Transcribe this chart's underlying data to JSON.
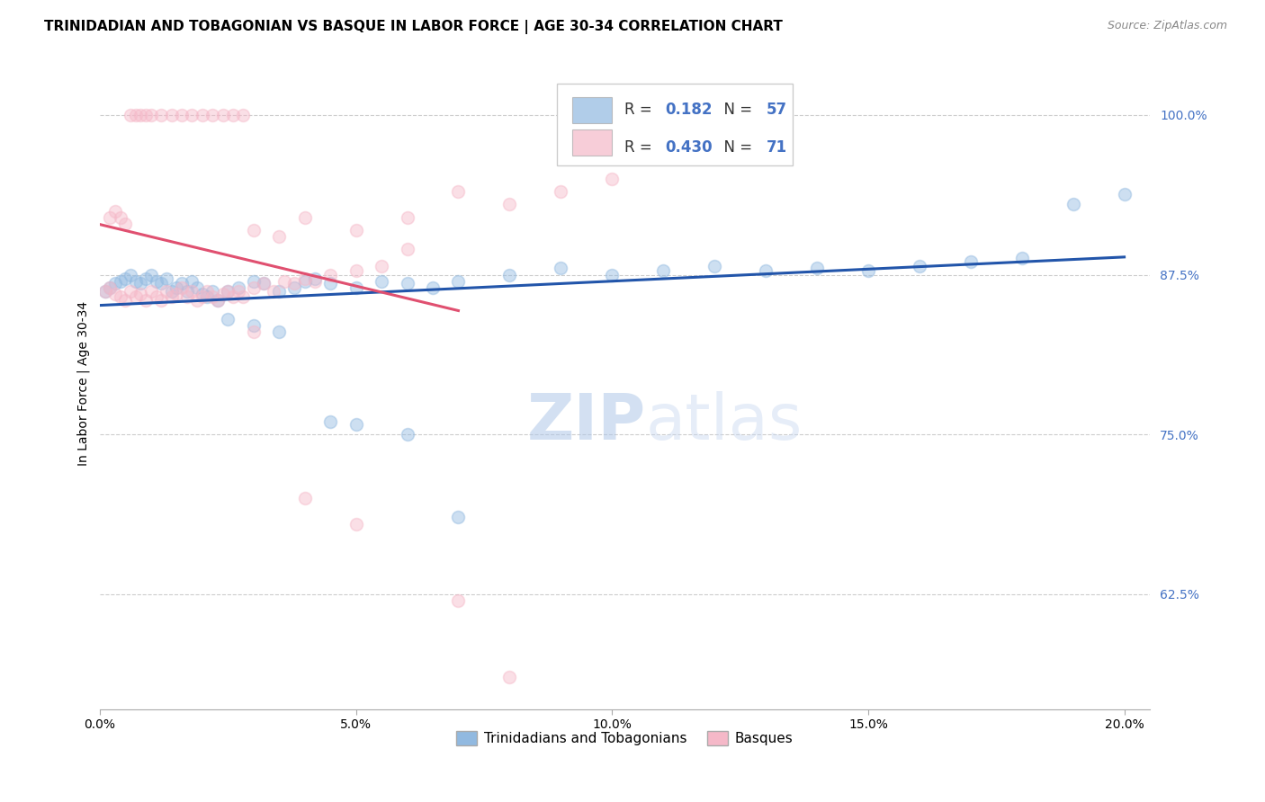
{
  "title": "TRINIDADIAN AND TOBAGONIAN VS BASQUE IN LABOR FORCE | AGE 30-34 CORRELATION CHART",
  "source": "Source: ZipAtlas.com",
  "ylabel": "In Labor Force | Age 30-34",
  "yticks": [
    0.625,
    0.75,
    0.875,
    1.0
  ],
  "ytick_labels": [
    "62.5%",
    "75.0%",
    "87.5%",
    "100.0%"
  ],
  "xlim": [
    0.0,
    0.205
  ],
  "ylim": [
    0.535,
    1.045
  ],
  "watermark_zip": "ZIP",
  "watermark_atlas": "atlas",
  "legend_blue_R": "0.182",
  "legend_blue_N": "57",
  "legend_pink_R": "0.430",
  "legend_pink_N": "71",
  "blue_scatter_x": [
    0.001,
    0.002,
    0.003,
    0.004,
    0.005,
    0.006,
    0.007,
    0.008,
    0.009,
    0.01,
    0.011,
    0.012,
    0.013,
    0.014,
    0.015,
    0.016,
    0.017,
    0.018,
    0.019,
    0.02,
    0.021,
    0.022,
    0.023,
    0.025,
    0.027,
    0.03,
    0.032,
    0.035,
    0.038,
    0.04,
    0.042,
    0.045,
    0.05,
    0.055,
    0.06,
    0.065,
    0.07,
    0.08,
    0.09,
    0.1,
    0.11,
    0.12,
    0.13,
    0.14,
    0.15,
    0.16,
    0.17,
    0.18,
    0.19,
    0.2,
    0.025,
    0.03,
    0.035,
    0.045,
    0.05,
    0.06,
    0.07
  ],
  "blue_scatter_y": [
    0.862,
    0.865,
    0.868,
    0.87,
    0.872,
    0.875,
    0.87,
    0.868,
    0.872,
    0.875,
    0.87,
    0.868,
    0.872,
    0.862,
    0.865,
    0.868,
    0.862,
    0.87,
    0.865,
    0.86,
    0.858,
    0.862,
    0.855,
    0.862,
    0.865,
    0.87,
    0.868,
    0.862,
    0.865,
    0.87,
    0.872,
    0.868,
    0.865,
    0.87,
    0.868,
    0.865,
    0.87,
    0.875,
    0.88,
    0.875,
    0.878,
    0.882,
    0.878,
    0.88,
    0.878,
    0.882,
    0.885,
    0.888,
    0.93,
    0.938,
    0.84,
    0.835,
    0.83,
    0.76,
    0.758,
    0.75,
    0.685
  ],
  "pink_scatter_x": [
    0.001,
    0.002,
    0.003,
    0.004,
    0.005,
    0.006,
    0.007,
    0.008,
    0.009,
    0.01,
    0.011,
    0.012,
    0.013,
    0.014,
    0.015,
    0.016,
    0.017,
    0.018,
    0.019,
    0.02,
    0.021,
    0.022,
    0.023,
    0.024,
    0.025,
    0.026,
    0.027,
    0.028,
    0.03,
    0.032,
    0.034,
    0.036,
    0.038,
    0.04,
    0.042,
    0.045,
    0.05,
    0.055,
    0.06,
    0.002,
    0.003,
    0.004,
    0.005,
    0.006,
    0.007,
    0.008,
    0.009,
    0.01,
    0.012,
    0.014,
    0.016,
    0.018,
    0.02,
    0.022,
    0.024,
    0.026,
    0.028,
    0.03,
    0.035,
    0.04,
    0.05,
    0.06,
    0.07,
    0.08,
    0.09,
    0.1,
    0.03,
    0.04,
    0.05,
    0.07,
    0.08
  ],
  "pink_scatter_y": [
    0.862,
    0.865,
    0.86,
    0.858,
    0.855,
    0.862,
    0.858,
    0.86,
    0.855,
    0.862,
    0.858,
    0.855,
    0.862,
    0.858,
    0.86,
    0.865,
    0.858,
    0.862,
    0.855,
    0.858,
    0.862,
    0.858,
    0.855,
    0.86,
    0.862,
    0.858,
    0.862,
    0.858,
    0.865,
    0.868,
    0.862,
    0.87,
    0.868,
    0.872,
    0.87,
    0.875,
    0.878,
    0.882,
    0.895,
    0.92,
    0.925,
    0.92,
    0.915,
    1.0,
    1.0,
    1.0,
    1.0,
    1.0,
    1.0,
    1.0,
    1.0,
    1.0,
    1.0,
    1.0,
    1.0,
    1.0,
    1.0,
    0.91,
    0.905,
    0.92,
    0.91,
    0.92,
    0.94,
    0.93,
    0.94,
    0.95,
    0.83,
    0.7,
    0.68,
    0.62,
    0.56
  ],
  "blue_color": "#91B9E0",
  "pink_color": "#F5B8C8",
  "blue_line_color": "#2255AA",
  "pink_line_color": "#E05070",
  "grid_color": "#cccccc",
  "background_color": "#ffffff",
  "title_fontsize": 11,
  "axis_label_fontsize": 10,
  "tick_fontsize": 10,
  "source_fontsize": 9,
  "scatter_size": 100,
  "scatter_alpha": 0.45,
  "scatter_edgewidth": 1.2
}
